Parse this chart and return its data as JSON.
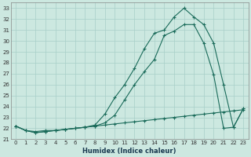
{
  "title": "",
  "xlabel": "Humidex (Indice chaleur)",
  "ylabel": "",
  "background_color": "#cce8e0",
  "line_color": "#1a6b5a",
  "grid_color": "#a8cfc8",
  "xlim": [
    -0.5,
    23.5
  ],
  "ylim": [
    21.0,
    33.5
  ],
  "yticks": [
    21,
    22,
    23,
    24,
    25,
    26,
    27,
    28,
    29,
    30,
    31,
    32,
    33
  ],
  "xticks": [
    0,
    1,
    2,
    3,
    4,
    5,
    6,
    7,
    8,
    9,
    10,
    11,
    12,
    13,
    14,
    15,
    16,
    17,
    18,
    19,
    20,
    21,
    22,
    23
  ],
  "lines": [
    {
      "x": [
        0,
        1,
        2,
        3,
        4,
        5,
        6,
        7,
        8,
        9,
        10,
        11,
        12,
        13,
        14,
        15,
        16,
        17,
        18,
        19,
        20,
        21,
        22,
        23
      ],
      "y": [
        22.2,
        21.8,
        21.6,
        21.7,
        21.8,
        21.9,
        22.0,
        22.1,
        22.3,
        23.3,
        24.8,
        26.0,
        27.5,
        29.3,
        30.7,
        31.0,
        32.2,
        33.0,
        32.2,
        31.5,
        29.8,
        26.0,
        22.1,
        23.8
      ]
    },
    {
      "x": [
        0,
        1,
        2,
        3,
        4,
        5,
        6,
        7,
        8,
        9,
        10,
        11,
        12,
        13,
        14,
        15,
        16,
        17,
        18,
        19,
        20,
        21,
        22,
        23
      ],
      "y": [
        22.2,
        21.8,
        21.6,
        21.7,
        21.8,
        21.9,
        22.0,
        22.1,
        22.2,
        22.5,
        23.2,
        24.6,
        26.0,
        27.2,
        28.3,
        30.5,
        30.9,
        31.5,
        31.5,
        29.8,
        26.9,
        22.0,
        22.1,
        23.8
      ]
    },
    {
      "x": [
        0,
        1,
        2,
        3,
        4,
        5,
        6,
        7,
        8,
        9,
        10,
        11,
        12,
        13,
        14,
        15,
        16,
        17,
        18,
        19,
        20,
        21,
        22,
        23
      ],
      "y": [
        22.2,
        21.8,
        21.7,
        21.8,
        21.8,
        21.9,
        22.0,
        22.1,
        22.2,
        22.3,
        22.4,
        22.5,
        22.6,
        22.7,
        22.8,
        22.9,
        23.0,
        23.1,
        23.2,
        23.3,
        23.4,
        23.5,
        23.6,
        23.7
      ]
    }
  ]
}
